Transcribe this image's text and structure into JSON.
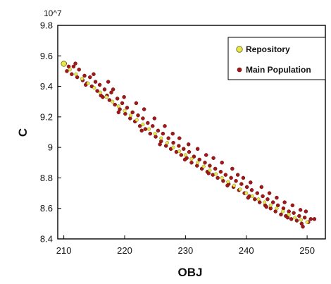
{
  "chart_data": {
    "type": "scatter",
    "xlabel": "OBJ",
    "ylabel": "C",
    "y_multiplier_label": "10^7",
    "xlim": [
      209,
      253
    ],
    "ylim": [
      8.4,
      9.8
    ],
    "x_ticks": [
      210,
      220,
      230,
      240,
      250
    ],
    "x_tick_labels": [
      "210",
      "220",
      "230",
      "240",
      "250"
    ],
    "y_ticks": [
      8.4,
      8.6,
      8.8,
      9.0,
      9.2,
      9.4,
      9.6,
      9.8
    ],
    "y_tick_labels": [
      "8.4",
      "8.6",
      "8.8",
      "9",
      "9.2",
      "9.4",
      "9.6",
      "9.8"
    ],
    "grid": false,
    "legend_position": "top-right",
    "series": [
      {
        "name": "Repository",
        "color": "#e8e84a",
        "edge_color": "#7a7a20",
        "marker": "circle",
        "points": [
          [
            210.0,
            9.548
          ],
          [
            211.0,
            9.51
          ],
          [
            212.0,
            9.48
          ],
          [
            213.0,
            9.45
          ],
          [
            214.0,
            9.42
          ],
          [
            215.0,
            9.39
          ],
          [
            216.0,
            9.36
          ],
          [
            217.0,
            9.33
          ],
          [
            218.0,
            9.3
          ],
          [
            219.0,
            9.27
          ],
          [
            220.0,
            9.24
          ],
          [
            221.0,
            9.21
          ],
          [
            222.0,
            9.18
          ],
          [
            223.0,
            9.15
          ],
          [
            224.0,
            9.12
          ],
          [
            225.0,
            9.09
          ],
          [
            226.0,
            9.06
          ],
          [
            227.0,
            9.03
          ],
          [
            228.0,
            9.0
          ],
          [
            229.0,
            8.975
          ],
          [
            230.0,
            8.95
          ],
          [
            231.0,
            8.925
          ],
          [
            232.0,
            8.9
          ],
          [
            233.0,
            8.875
          ],
          [
            234.0,
            8.85
          ],
          [
            235.0,
            8.825
          ],
          [
            236.0,
            8.8
          ],
          [
            237.0,
            8.775
          ],
          [
            238.0,
            8.75
          ],
          [
            239.0,
            8.725
          ],
          [
            240.0,
            8.7
          ],
          [
            241.0,
            8.68
          ],
          [
            242.0,
            8.66
          ],
          [
            243.0,
            8.64
          ],
          [
            244.0,
            8.62
          ],
          [
            245.0,
            8.6
          ],
          [
            246.0,
            8.58
          ],
          [
            247.0,
            8.56
          ],
          [
            248.0,
            8.54
          ],
          [
            249.0,
            8.525
          ],
          [
            250.0,
            8.51
          ]
        ]
      },
      {
        "name": "Main Population",
        "color": "#a01818",
        "edge_color": "#6a0c0c",
        "marker": "circle",
        "points": [
          [
            210.2,
            9.55
          ],
          [
            210.5,
            9.5
          ],
          [
            210.8,
            9.53
          ],
          [
            211.3,
            9.48
          ],
          [
            211.6,
            9.53
          ],
          [
            212.2,
            9.46
          ],
          [
            212.5,
            9.51
          ],
          [
            213.1,
            9.44
          ],
          [
            213.4,
            9.47
          ],
          [
            213.8,
            9.42
          ],
          [
            214.3,
            9.46
          ],
          [
            214.6,
            9.4
          ],
          [
            215.2,
            9.43
          ],
          [
            215.5,
            9.37
          ],
          [
            215.9,
            9.41
          ],
          [
            216.4,
            9.33
          ],
          [
            216.7,
            9.38
          ],
          [
            217.1,
            9.34
          ],
          [
            217.5,
            9.31
          ],
          [
            217.8,
            9.36
          ],
          [
            218.4,
            9.28
          ],
          [
            218.8,
            9.32
          ],
          [
            219.2,
            9.25
          ],
          [
            219.6,
            9.29
          ],
          [
            220.1,
            9.22
          ],
          [
            220.4,
            9.26
          ],
          [
            220.9,
            9.19
          ],
          [
            221.3,
            9.23
          ],
          [
            221.7,
            9.17
          ],
          [
            222.2,
            9.21
          ],
          [
            222.5,
            9.14
          ],
          [
            223.0,
            9.19
          ],
          [
            223.4,
            9.12
          ],
          [
            223.8,
            9.16
          ],
          [
            224.2,
            9.09
          ],
          [
            224.6,
            9.14
          ],
          [
            225.1,
            9.07
          ],
          [
            225.5,
            9.11
          ],
          [
            226.0,
            9.04
          ],
          [
            226.3,
            9.09
          ],
          [
            226.8,
            9.01
          ],
          [
            227.2,
            9.06
          ],
          [
            227.6,
            8.99
          ],
          [
            228.0,
            9.03
          ],
          [
            228.5,
            8.97
          ],
          [
            228.9,
            9.01
          ],
          [
            229.3,
            8.95
          ],
          [
            229.7,
            8.99
          ],
          [
            230.2,
            8.93
          ],
          [
            230.6,
            8.97
          ],
          [
            231.0,
            8.9
          ],
          [
            231.4,
            8.94
          ],
          [
            231.9,
            8.88
          ],
          [
            232.3,
            8.92
          ],
          [
            232.7,
            8.86
          ],
          [
            233.2,
            8.9
          ],
          [
            233.6,
            8.84
          ],
          [
            234.0,
            8.88
          ],
          [
            234.5,
            8.82
          ],
          [
            234.9,
            8.86
          ],
          [
            235.3,
            8.8
          ],
          [
            235.8,
            8.84
          ],
          [
            236.2,
            8.78
          ],
          [
            236.6,
            8.82
          ],
          [
            237.1,
            8.76
          ],
          [
            237.5,
            8.8
          ],
          [
            237.9,
            8.74
          ],
          [
            238.3,
            8.78
          ],
          [
            238.8,
            8.72
          ],
          [
            239.2,
            8.76
          ],
          [
            239.7,
            8.7
          ],
          [
            240.1,
            8.74
          ],
          [
            240.5,
            8.68
          ],
          [
            240.9,
            8.72
          ],
          [
            241.4,
            8.66
          ],
          [
            241.8,
            8.7
          ],
          [
            242.2,
            8.64
          ],
          [
            242.7,
            8.68
          ],
          [
            243.1,
            8.62
          ],
          [
            243.5,
            8.66
          ],
          [
            244.0,
            8.6
          ],
          [
            244.4,
            8.64
          ],
          [
            244.8,
            8.58
          ],
          [
            245.2,
            8.62
          ],
          [
            245.7,
            8.56
          ],
          [
            246.1,
            8.6
          ],
          [
            246.5,
            8.55
          ],
          [
            247.0,
            8.58
          ],
          [
            247.4,
            8.53
          ],
          [
            247.8,
            8.57
          ],
          [
            248.3,
            8.52
          ],
          [
            248.7,
            8.55
          ],
          [
            249.1,
            8.5
          ],
          [
            249.6,
            8.54
          ],
          [
            250.2,
            8.51
          ],
          [
            250.6,
            8.53
          ],
          [
            251.2,
            8.53
          ],
          [
            211.9,
            9.55
          ],
          [
            214.9,
            9.48
          ],
          [
            217.3,
            9.43
          ],
          [
            218.1,
            9.38
          ],
          [
            219.9,
            9.33
          ],
          [
            221.9,
            9.29
          ],
          [
            223.2,
            9.25
          ],
          [
            224.9,
            9.19
          ],
          [
            226.6,
            9.14
          ],
          [
            227.9,
            9.09
          ],
          [
            229.0,
            9.06
          ],
          [
            230.5,
            9.02
          ],
          [
            232.0,
            8.99
          ],
          [
            233.4,
            8.95
          ],
          [
            234.6,
            8.93
          ],
          [
            236.0,
            8.9
          ],
          [
            237.7,
            8.86
          ],
          [
            238.6,
            8.82
          ],
          [
            239.5,
            8.8
          ],
          [
            240.7,
            8.77
          ],
          [
            242.5,
            8.74
          ],
          [
            243.8,
            8.7
          ],
          [
            245.0,
            8.67
          ],
          [
            246.3,
            8.64
          ],
          [
            247.6,
            8.62
          ],
          [
            248.9,
            8.59
          ],
          [
            249.8,
            8.58
          ],
          [
            213.6,
            9.41
          ],
          [
            216.1,
            9.34
          ],
          [
            219.0,
            9.23
          ],
          [
            222.8,
            9.11
          ],
          [
            225.8,
            9.02
          ],
          [
            229.9,
            8.92
          ],
          [
            233.8,
            8.83
          ],
          [
            236.9,
            8.75
          ],
          [
            240.3,
            8.67
          ],
          [
            243.3,
            8.61
          ],
          [
            246.8,
            8.54
          ],
          [
            249.3,
            8.48
          ]
        ]
      }
    ]
  }
}
